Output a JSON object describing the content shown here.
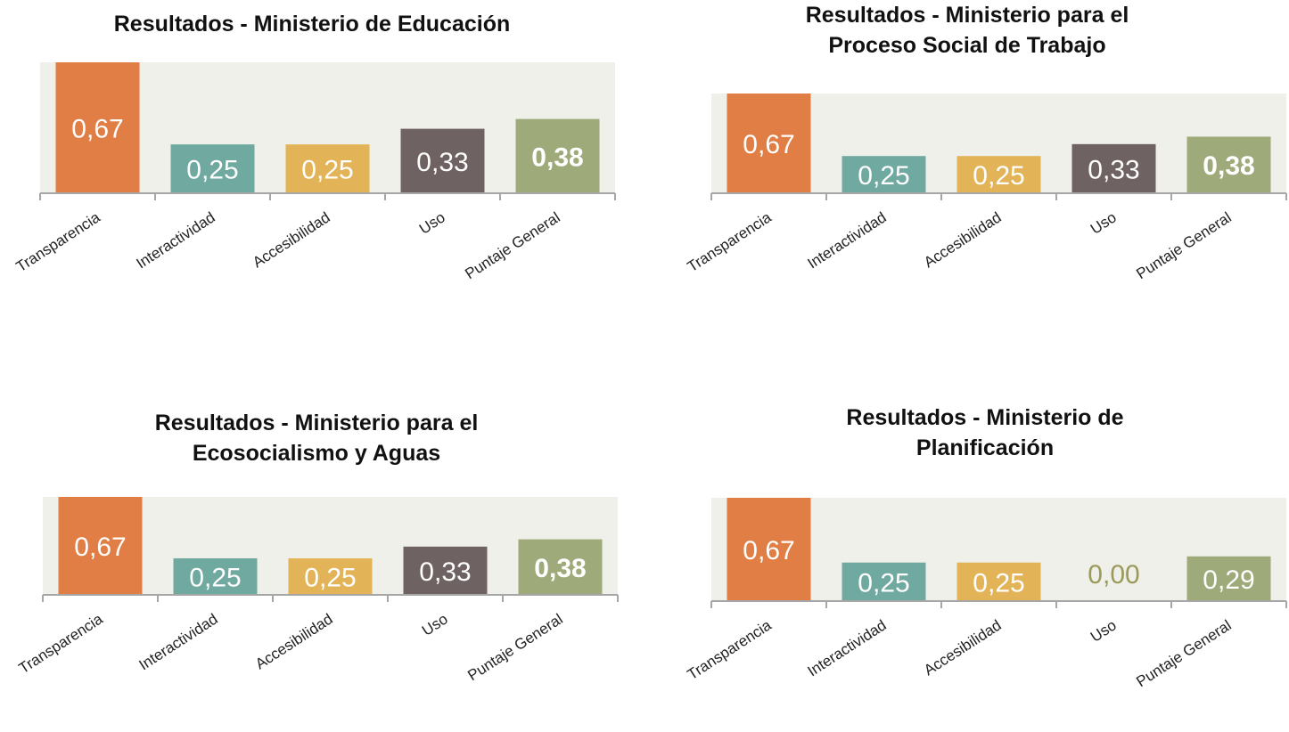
{
  "colors": {
    "plot_background": "#f0f0ea",
    "axis": "#a6a6a6",
    "Transparencia": "#e07e45",
    "Interactividad": "#6fa9a0",
    "Accesibilidad": "#e3b457",
    "Uso": "#6f6262",
    "Puntaje General": "#9eaa79",
    "zero_label": "#9a9a5a"
  },
  "chart_data": [
    {
      "type": "bar",
      "title": "Resultados - Ministerio de Educación",
      "categories": [
        "Transparencia",
        "Interactividad",
        "Accesibilidad",
        "Uso",
        "Puntaje General"
      ],
      "values": [
        0.67,
        0.25,
        0.25,
        0.33,
        0.38
      ],
      "labels": [
        "0,67",
        "0,25",
        "0,25",
        "0,33",
        "0,38"
      ],
      "ylim": [
        0,
        0.67
      ],
      "grid": false,
      "legend": "none"
    },
    {
      "type": "bar",
      "title": "Resultados - Ministerio para el Proceso Social de Trabajo",
      "categories": [
        "Transparencia",
        "Interactividad",
        "Accesibilidad",
        "Uso",
        "Puntaje General"
      ],
      "values": [
        0.67,
        0.25,
        0.25,
        0.33,
        0.38
      ],
      "labels": [
        "0,67",
        "0,25",
        "0,25",
        "0,33",
        "0,38"
      ],
      "ylim": [
        0,
        0.67
      ],
      "grid": false,
      "legend": "none"
    },
    {
      "type": "bar",
      "title": "Resultados - Ministerio para el Ecosocialismo y Aguas",
      "categories": [
        "Transparencia",
        "Interactividad",
        "Accesibilidad",
        "Uso",
        "Puntaje General"
      ],
      "values": [
        0.67,
        0.25,
        0.25,
        0.33,
        0.38
      ],
      "labels": [
        "0,67",
        "0,25",
        "0,25",
        "0,33",
        "0,38"
      ],
      "ylim": [
        0,
        0.67
      ],
      "grid": false,
      "legend": "none"
    },
    {
      "type": "bar",
      "title": "Resultados - Ministerio de Planificación",
      "categories": [
        "Transparencia",
        "Interactividad",
        "Accesibilidad",
        "Uso",
        "Puntaje General"
      ],
      "values": [
        0.67,
        0.25,
        0.25,
        0.0,
        0.29
      ],
      "labels": [
        "0,67",
        "0,25",
        "0,25",
        "0,00",
        "0,29"
      ],
      "ylim": [
        0,
        0.67
      ],
      "grid": false,
      "legend": "none"
    }
  ]
}
